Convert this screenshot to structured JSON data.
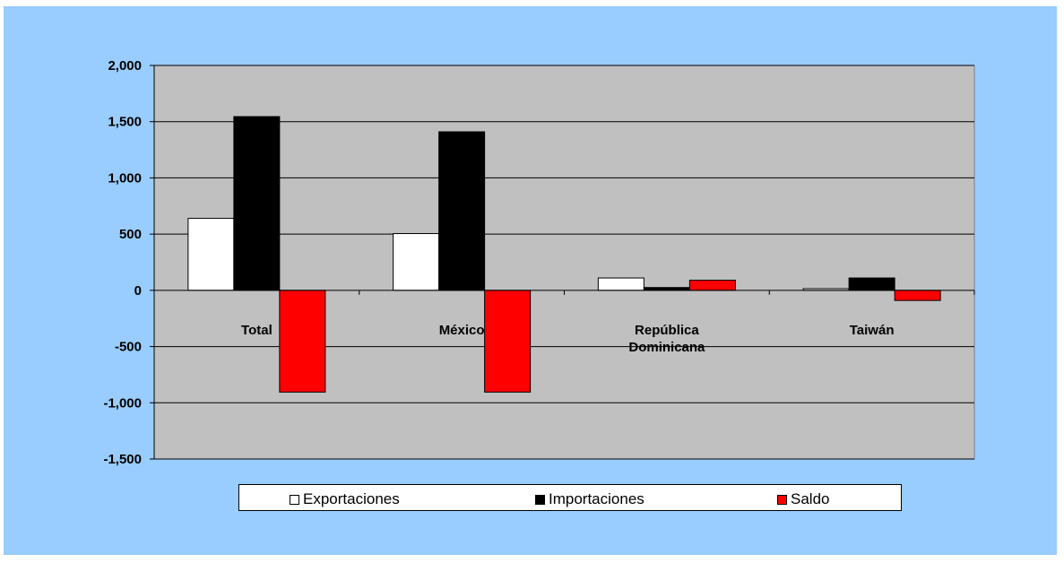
{
  "chart_data": {
    "type": "bar",
    "title": "",
    "xlabel": "",
    "ylabel": "",
    "categories": [
      [
        "Total"
      ],
      [
        "México"
      ],
      [
        "República",
        "Dominicana"
      ],
      [
        "Taiwán"
      ]
    ],
    "series": [
      {
        "name": "Exportaciones",
        "color": "#ffffff",
        "values": [
          640,
          505,
          110,
          15
        ]
      },
      {
        "name": "Importaciones",
        "color": "#000000",
        "values": [
          1545,
          1410,
          25,
          110
        ]
      },
      {
        "name": "Saldo",
        "color": "#ff0000",
        "values": [
          -905,
          -905,
          90,
          -90
        ]
      }
    ],
    "ylim": [
      -1500,
      2000
    ],
    "yticks": [
      2000,
      1500,
      1000,
      500,
      0,
      -500,
      -1000,
      -1500
    ],
    "ytick_labels": [
      "2,000",
      "1,500",
      "1,000",
      "500",
      "0",
      "-500",
      "-1,000",
      "-1,500"
    ],
    "grid": true,
    "legend_position": "bottom",
    "colors": {
      "background": "#99ccff",
      "plot_area": "#c0c0c0"
    }
  }
}
